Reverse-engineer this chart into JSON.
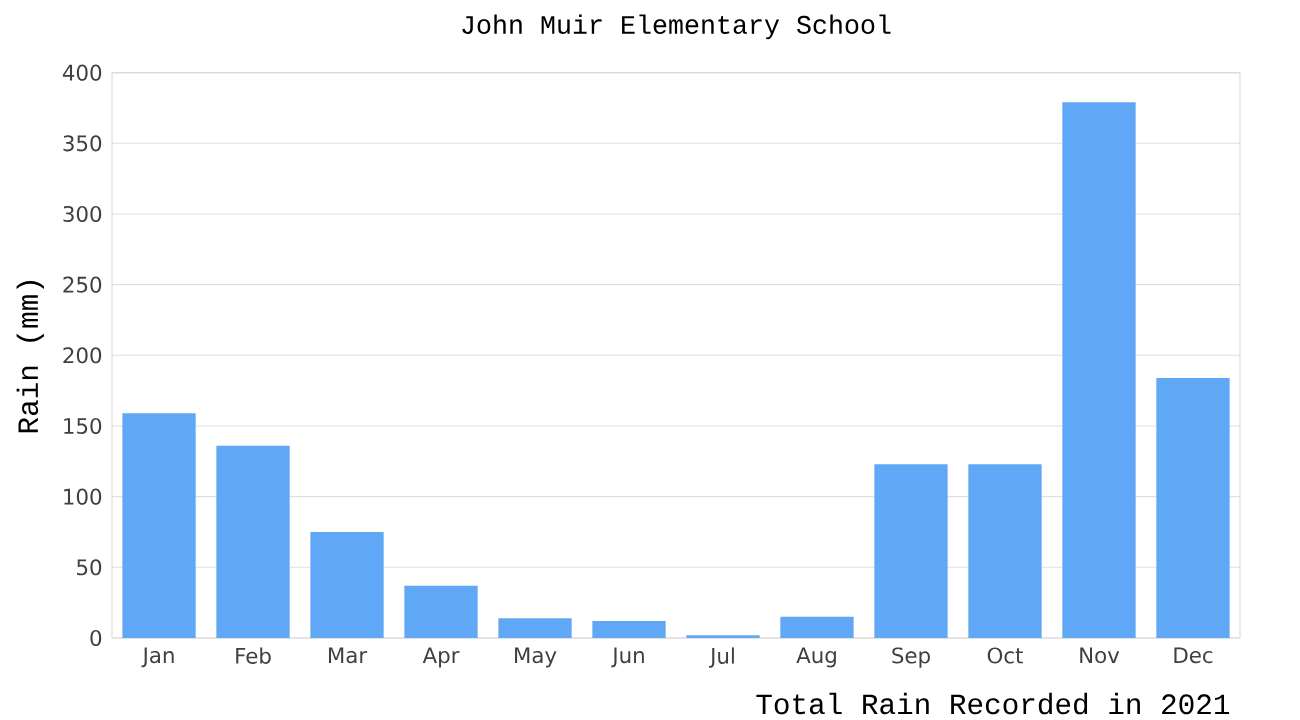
{
  "chart_data": {
    "type": "bar",
    "title": "John Muir Elementary School",
    "xlabel": "Total Rain Recorded in 2021",
    "ylabel": "Rain (mm)",
    "categories": [
      "Jan",
      "Feb",
      "Mar",
      "Apr",
      "May",
      "Jun",
      "Jul",
      "Aug",
      "Sep",
      "Oct",
      "Nov",
      "Dec"
    ],
    "values": [
      159,
      136,
      75,
      37,
      14,
      12,
      2,
      15,
      123,
      123,
      379,
      184
    ],
    "color": "#60a8f5",
    "ylim": [
      0,
      400
    ],
    "yticks": [
      0,
      50,
      100,
      150,
      200,
      250,
      300,
      350,
      400
    ],
    "grid": "y"
  }
}
